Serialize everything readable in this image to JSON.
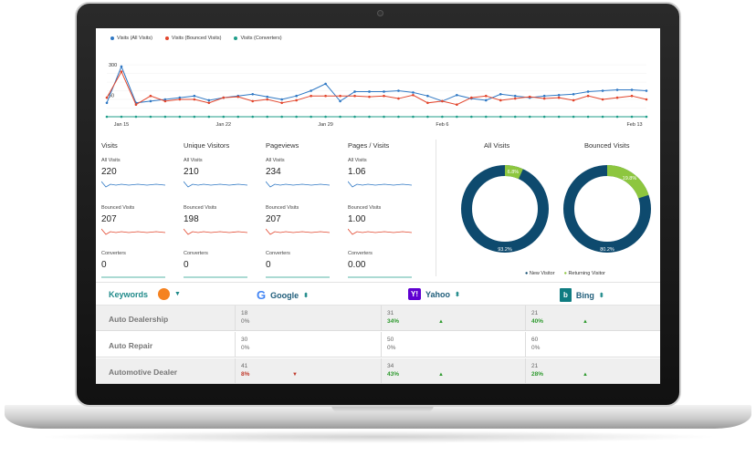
{
  "legend": [
    {
      "label": "Visits (All Visits)",
      "color": "#2f78c4"
    },
    {
      "label": "Visits (Bounced Visits)",
      "color": "#e2452c"
    },
    {
      "label": "Visits (Converters)",
      "color": "#1f9e8a"
    }
  ],
  "chart_data": {
    "type": "line",
    "y_tick_labels": [
      "300",
      "50"
    ],
    "x_tick_labels": [
      "Jan 15",
      "Jan 22",
      "Jan 29",
      "Feb 6",
      "Feb 13"
    ],
    "series": [
      {
        "name": "Visits (All Visits)",
        "color": "#2f78c4",
        "values": [
          80,
          290,
          80,
          90,
          100,
          110,
          120,
          95,
          110,
          120,
          130,
          115,
          100,
          120,
          150,
          190,
          90,
          145,
          145,
          145,
          150,
          140,
          120,
          90,
          125,
          105,
          95,
          130,
          120,
          110,
          120,
          125,
          130,
          145,
          150,
          155,
          155,
          150
        ]
      },
      {
        "name": "Visits (Bounced Visits)",
        "color": "#e2452c",
        "values": [
          110,
          260,
          70,
          120,
          90,
          100,
          100,
          80,
          110,
          115,
          90,
          100,
          80,
          95,
          120,
          120,
          120,
          120,
          115,
          120,
          105,
          125,
          80,
          90,
          70,
          110,
          120,
          95,
          105,
          115,
          105,
          110,
          95,
          120,
          100,
          110,
          120,
          100
        ]
      },
      {
        "name": "Visits (Converters)",
        "color": "#1f9e8a",
        "values": [
          0,
          0,
          0,
          0,
          0,
          0,
          0,
          0,
          0,
          0,
          0,
          0,
          0,
          0,
          0,
          0,
          0,
          0,
          0,
          0,
          0,
          0,
          0,
          0,
          0,
          0,
          0,
          0,
          0,
          0,
          0,
          0,
          0,
          0,
          0,
          0,
          0,
          0
        ]
      }
    ]
  },
  "stats": [
    {
      "title": "Visits",
      "all_label": "All Visits",
      "all_value": "220",
      "bounced_label": "Bounced Visits",
      "bounced_value": "207",
      "conv_label": "Converters",
      "conv_value": "0"
    },
    {
      "title": "Unique Visitors",
      "all_label": "All Visits",
      "all_value": "210",
      "bounced_label": "Bounced Visits",
      "bounced_value": "198",
      "conv_label": "Converters",
      "conv_value": "0"
    },
    {
      "title": "Pageviews",
      "all_label": "All Visits",
      "all_value": "234",
      "bounced_label": "Bounced Visits",
      "bounced_value": "207",
      "conv_label": "Converters",
      "conv_value": "0"
    },
    {
      "title": "Pages / Visits",
      "all_label": "All Visits",
      "all_value": "1.06",
      "bounced_label": "Bounced Visits",
      "bounced_value": "1.00",
      "conv_label": "Converters",
      "conv_value": "0.00"
    }
  ],
  "donuts": [
    {
      "title": "All Visits",
      "new_pct": 93.2,
      "returning_pct": 6.8,
      "new_label": "93.2%",
      "returning_label": "6.8%"
    },
    {
      "title": "Bounced Visits",
      "new_pct": 80.2,
      "returning_pct": 19.8,
      "new_label": "80.2%",
      "returning_label": "19.8%"
    }
  ],
  "donut_legend": [
    {
      "label": "New Visitor",
      "color": "#0e4a6e"
    },
    {
      "label": "Returning Visitor",
      "color": "#8dc63f"
    }
  ],
  "table": {
    "keywords_label": "Keywords",
    "engines": [
      "Google",
      "Yahoo",
      "Bing"
    ],
    "rows": [
      {
        "name": "Auto Dealership",
        "cells": [
          {
            "count": "18",
            "pct": "0%",
            "trend": "none"
          },
          {
            "count": "31",
            "pct": "34%",
            "trend": "up"
          },
          {
            "count": "21",
            "pct": "40%",
            "trend": "up"
          }
        ]
      },
      {
        "name": "Auto Repair",
        "cells": [
          {
            "count": "30",
            "pct": "0%",
            "trend": "none"
          },
          {
            "count": "50",
            "pct": "0%",
            "trend": "none"
          },
          {
            "count": "60",
            "pct": "0%",
            "trend": "none"
          }
        ]
      },
      {
        "name": "Automotive Dealer",
        "cells": [
          {
            "count": "41",
            "pct": "8%",
            "trend": "down"
          },
          {
            "count": "34",
            "pct": "43%",
            "trend": "up"
          },
          {
            "count": "21",
            "pct": "28%",
            "trend": "up"
          }
        ]
      }
    ]
  }
}
